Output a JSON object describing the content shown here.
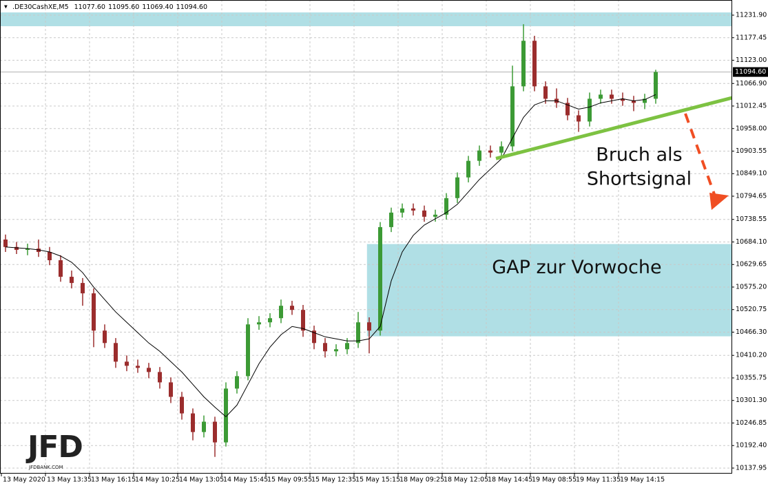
{
  "chart_data": {
    "type": "candlestick",
    "symbol": ".DE30CashXE,M5",
    "header_values": [
      "11077.60",
      "11095.60",
      "11069.40",
      "11094.60"
    ],
    "categories": [
      "13 May 2020",
      null,
      null,
      null,
      "13 May 13:35",
      null,
      null,
      null,
      "13 May 16:15",
      null,
      null,
      null,
      "14 May 10:25",
      null,
      null,
      null,
      "14 May 13:05",
      null,
      null,
      null,
      "14 May 15:45",
      null,
      null,
      null,
      "15 May 09:55",
      null,
      null,
      null,
      "15 May 12:35",
      null,
      null,
      null,
      "15 May 15:15",
      null,
      null,
      null,
      "18 May 09:25",
      null,
      null,
      null,
      "18 May 12:05",
      null,
      null,
      null,
      "18 May 14:45",
      null,
      null,
      null,
      "19 May 08:55",
      null,
      null,
      null,
      "19 May 11:35",
      null,
      null,
      null,
      "19 May 14:15",
      null,
      null,
      null
    ],
    "open": [
      10690,
      10672,
      10665,
      10668,
      10660,
      10640,
      10600,
      10585,
      10560,
      10470,
      10440,
      10395,
      10385,
      10380,
      10370,
      10345,
      10310,
      10270,
      10225,
      10250,
      10200,
      10330,
      10360,
      10485,
      10490,
      10500,
      10530,
      10520,
      10470,
      10440,
      10420,
      10425,
      10440,
      10490,
      10470,
      10720,
      10755,
      10765,
      10760,
      10745,
      10750,
      10790,
      10840,
      10880,
      10905,
      10900,
      10915,
      11060,
      11170,
      11060,
      11030,
      11020,
      10990,
      10975,
      11030,
      11040,
      11030,
      11025,
      11020,
      11030
    ],
    "high": [
      10702,
      10684,
      10680,
      10690,
      10672,
      10652,
      10615,
      10597,
      10572,
      10485,
      10452,
      10410,
      10400,
      10392,
      10382,
      10357,
      10322,
      10282,
      10265,
      10262,
      10345,
      10372,
      10500,
      10505,
      10512,
      10545,
      10542,
      10532,
      10482,
      10452,
      10437,
      10452,
      10515,
      10502,
      10732,
      10767,
      10777,
      10777,
      10772,
      10762,
      10802,
      10852,
      10892,
      10917,
      10917,
      10927,
      11110,
      11210,
      11182,
      11072,
      11055,
      11032,
      11002,
      11045,
      11052,
      11052,
      11045,
      11037,
      11042,
      11100
    ],
    "low": [
      10660,
      10655,
      10652,
      10648,
      10628,
      10588,
      10572,
      10530,
      10430,
      10428,
      10380,
      10372,
      10368,
      10355,
      10330,
      10295,
      10255,
      10205,
      10212,
      10165,
      10190,
      10318,
      10350,
      10472,
      10478,
      10488,
      10508,
      10455,
      10425,
      10405,
      10408,
      10413,
      10428,
      10415,
      10458,
      10708,
      10743,
      10748,
      10733,
      10733,
      10738,
      10778,
      10828,
      10868,
      10888,
      10888,
      10903,
      11048,
      11048,
      11018,
      11008,
      10978,
      10950,
      10963,
      11018,
      11018,
      11013,
      11000,
      11005,
      11018
    ],
    "close": [
      10672,
      10665,
      10668,
      10660,
      10640,
      10600,
      10585,
      10560,
      10470,
      10440,
      10395,
      10385,
      10380,
      10370,
      10345,
      10310,
      10270,
      10225,
      10250,
      10200,
      10330,
      10360,
      10485,
      10490,
      10500,
      10530,
      10520,
      10470,
      10440,
      10420,
      10425,
      10440,
      10490,
      10470,
      10720,
      10755,
      10765,
      10760,
      10745,
      10750,
      10790,
      10840,
      10880,
      10905,
      10900,
      10915,
      11060,
      11170,
      11060,
      11030,
      11020,
      10990,
      10975,
      11030,
      11040,
      11030,
      11025,
      11020,
      11030,
      11094.6
    ],
    "up_color": "#3c9a35",
    "down_color": "#9b2d2d",
    "ma": {
      "color": "#000000",
      "values": [
        10672,
        10670,
        10668,
        10665,
        10660,
        10650,
        10635,
        10610,
        10575,
        10545,
        10515,
        10490,
        10465,
        10440,
        10420,
        10395,
        10370,
        10340,
        10310,
        10285,
        10262,
        10290,
        10340,
        10390,
        10430,
        10460,
        10480,
        10475,
        10465,
        10455,
        10450,
        10445,
        10445,
        10450,
        10480,
        10590,
        10660,
        10700,
        10725,
        10740,
        10755,
        10775,
        10805,
        10835,
        10860,
        10885,
        10935,
        10985,
        11015,
        11025,
        11025,
        11015,
        11005,
        11010,
        11020,
        11025,
        11030,
        11025,
        11028,
        11040
      ]
    },
    "ylim": [
      10124.6,
      11268.5
    ],
    "yticks": [
      {
        "value": 11231.9,
        "label": "11231.90"
      },
      11177.45,
      {
        "value": 11123,
        "label": "11123.00"
      },
      {
        "value": 11066.9,
        "label": "11066.90"
      },
      11012.45,
      {
        "value": 10958,
        "label": "10958.00"
      },
      10903.55,
      {
        "value": 10849.1,
        "label": "10849.10"
      },
      10794.65,
      10738.55,
      {
        "value": 10684.1,
        "label": "10684.10"
      },
      10629.65,
      {
        "value": 10575.2,
        "label": "10575.20"
      },
      10520.75,
      {
        "value": 10466.3,
        "label": "10466.30"
      },
      {
        "value": 10410.2,
        "label": "10410.20"
      },
      10355.75,
      {
        "value": 10301.3,
        "label": "10301.30"
      },
      10246.85,
      {
        "value": 10192.4,
        "label": "10192.40"
      },
      10137.95
    ],
    "grid": true,
    "current_price": {
      "value": 11094.6,
      "label": "11094.60"
    },
    "zones": [
      {
        "x_start": 0,
        "y": [
          11205.2,
          11238.5
        ],
        "color": "#b0dfe5"
      },
      {
        "x_start": 33.3,
        "y": [
          10456.2,
          10679.1
        ],
        "color": "#b0dfe5",
        "label": "GAP zur Vorwoche"
      }
    ],
    "trendline": {
      "x": [
        45,
        66.4
      ],
      "y": [
        10885.5,
        11032.1
      ],
      "color": "#7dc242"
    },
    "annotation": [
      "Bruch als",
      "Shortsignal"
    ],
    "logo": "JFD",
    "logo_sub": "JFDBANK.COM"
  }
}
